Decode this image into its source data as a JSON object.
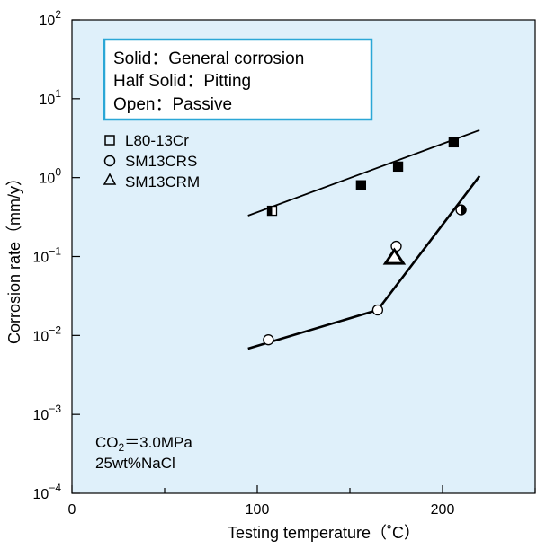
{
  "chart_data": {
    "type": "scatter",
    "xlabel": "Testing temperature（˚C）",
    "ylabel": "Corrosion rate（mm/y）",
    "xlim": [
      0,
      250
    ],
    "ylim": [
      0.0001,
      100
    ],
    "y_scale": "log",
    "grid": false,
    "background_color": "#dff0fa",
    "x_ticks": [
      {
        "value": 0,
        "label": "0"
      },
      {
        "value": 100,
        "label": "100"
      },
      {
        "value": 200,
        "label": "200"
      }
    ],
    "y_ticks": [
      {
        "value": 100,
        "base": "10",
        "exp": "2"
      },
      {
        "value": 10,
        "base": "10",
        "exp": "1"
      },
      {
        "value": 1,
        "base": "10",
        "exp": "0"
      },
      {
        "value": 0.1,
        "base": "10",
        "exp": "−1"
      },
      {
        "value": 0.01,
        "base": "10",
        "exp": "−2"
      },
      {
        "value": 0.001,
        "base": "10",
        "exp": "−3"
      },
      {
        "value": 0.0001,
        "base": "10",
        "exp": "−4"
      }
    ],
    "legend_box": {
      "border_color": "#2ba7d6",
      "lines": [
        "Solid：General corrosion",
        "Half Solid：Pitting",
        "Open：Passive"
      ]
    },
    "legend": [
      {
        "marker": "square",
        "label": "L80-13Cr"
      },
      {
        "marker": "circle",
        "label": "SM13CRS"
      },
      {
        "marker": "triangle",
        "label": "SM13CRM"
      }
    ],
    "conditions": {
      "co2_prefix": "CO",
      "co2_sub": "2",
      "co2_suffix": "＝3.0MPa",
      "nacl": "25wt%NaCl"
    },
    "series": [
      {
        "material": "L80-13Cr",
        "marker": "square",
        "points": [
          {
            "x": 108,
            "y": 0.38,
            "fill": "half"
          },
          {
            "x": 156,
            "y": 0.8,
            "fill": "solid"
          },
          {
            "x": 176,
            "y": 1.38,
            "fill": "solid"
          },
          {
            "x": 206,
            "y": 2.8,
            "fill": "solid"
          }
        ],
        "trend": [
          {
            "x": 95,
            "y": 0.33
          },
          {
            "x": 220,
            "y": 4.0
          }
        ]
      },
      {
        "material": "SM13CRS",
        "marker": "circle",
        "points": [
          {
            "x": 106,
            "y": 0.0088,
            "fill": "open"
          },
          {
            "x": 165,
            "y": 0.021,
            "fill": "open"
          },
          {
            "x": 175,
            "y": 0.135,
            "fill": "open"
          },
          {
            "x": 210,
            "y": 0.39,
            "fill": "half"
          }
        ],
        "trend": [
          {
            "x": 95,
            "y": 0.0068
          },
          {
            "x": 165,
            "y": 0.021
          },
          {
            "x": 220,
            "y": 1.05
          }
        ]
      },
      {
        "material": "SM13CRM",
        "marker": "triangle",
        "points": [
          {
            "x": 174,
            "y": 0.095,
            "fill": "open"
          }
        ],
        "trend": []
      }
    ]
  }
}
